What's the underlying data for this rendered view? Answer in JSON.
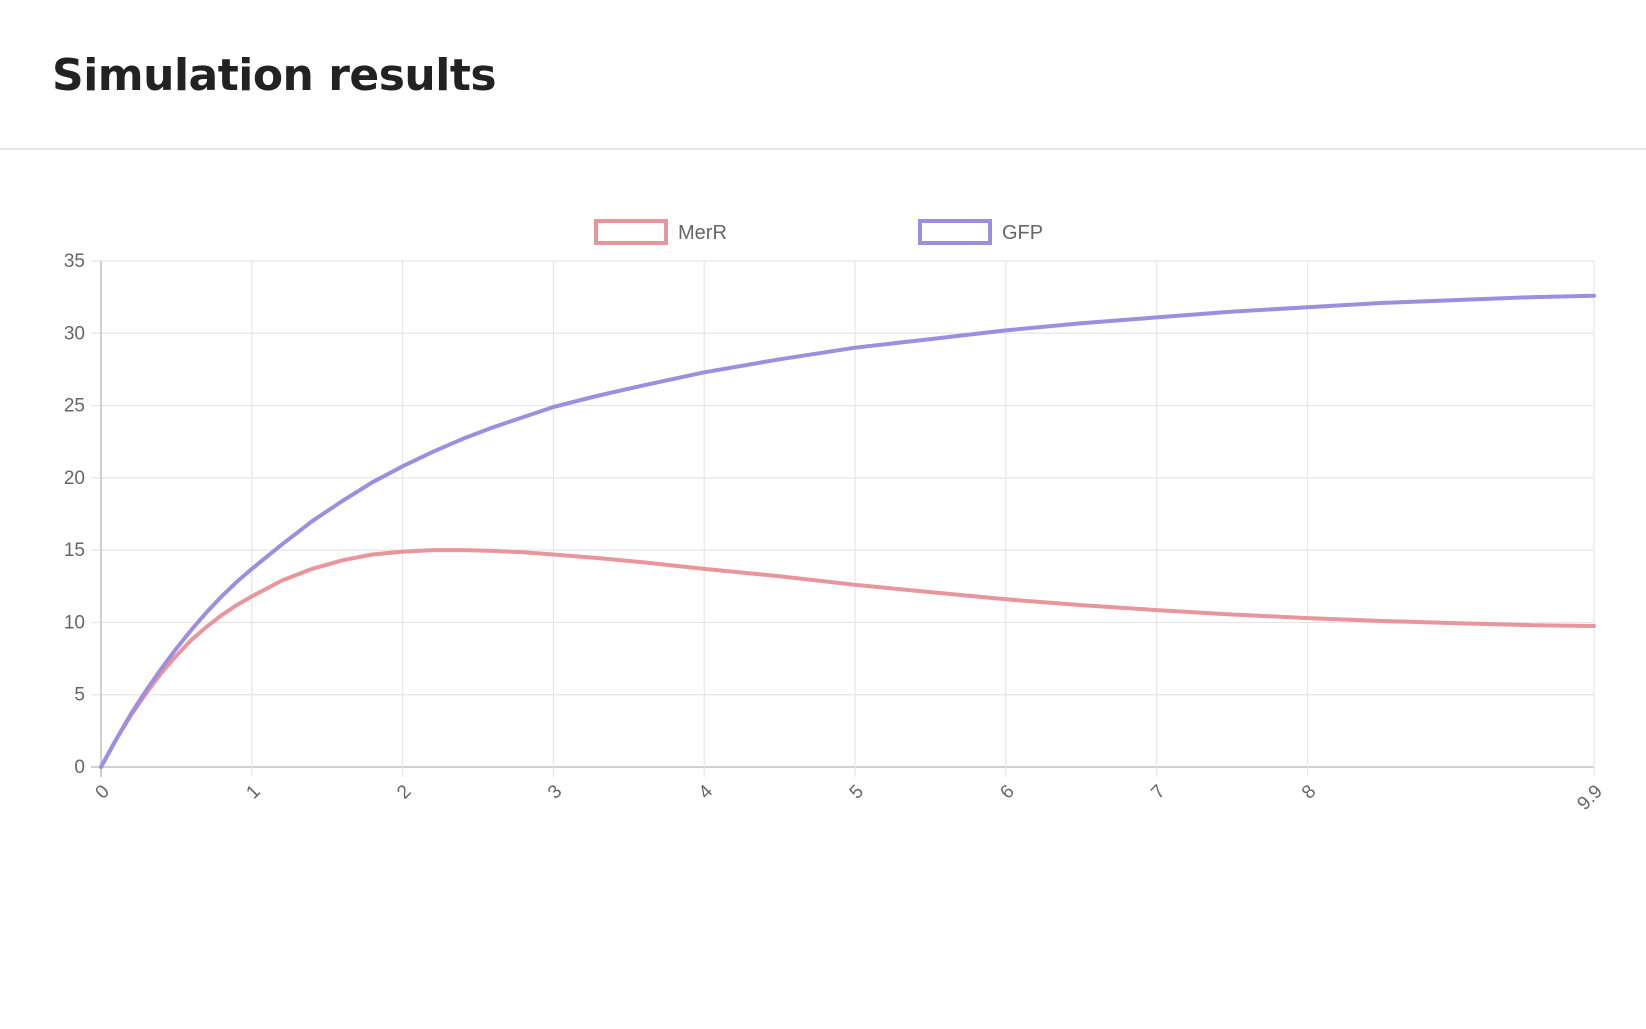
{
  "page": {
    "title": "Simulation results"
  },
  "chart_data": {
    "type": "line",
    "title": "",
    "xlabel": "",
    "ylabel": "",
    "xlim": [
      0,
      9.9
    ],
    "ylim": [
      0,
      35
    ],
    "x_ticks": [
      "0",
      "1",
      "2",
      "3",
      "4",
      "5",
      "6",
      "7",
      "8",
      "9.9"
    ],
    "y_ticks": [
      "0",
      "5",
      "10",
      "15",
      "20",
      "25",
      "30",
      "35"
    ],
    "grid": true,
    "legend_position": "top-center",
    "series": [
      {
        "name": "MerR",
        "color": "#e8959b",
        "x": [
          0,
          0.1,
          0.2,
          0.3,
          0.4,
          0.5,
          0.6,
          0.7,
          0.8,
          0.9,
          1.0,
          1.2,
          1.4,
          1.6,
          1.8,
          2.0,
          2.2,
          2.4,
          2.6,
          2.8,
          3.0,
          3.3,
          3.6,
          4.0,
          4.5,
          5.0,
          5.5,
          6.0,
          6.5,
          7.0,
          7.5,
          8.0,
          8.5,
          9.0,
          9.5,
          9.9
        ],
        "values": [
          0,
          1.9,
          3.6,
          5.1,
          6.5,
          7.7,
          8.8,
          9.7,
          10.5,
          11.2,
          11.8,
          12.9,
          13.7,
          14.3,
          14.7,
          14.9,
          15.0,
          15.0,
          14.95,
          14.85,
          14.7,
          14.45,
          14.15,
          13.7,
          13.2,
          12.6,
          12.1,
          11.6,
          11.2,
          10.85,
          10.55,
          10.3,
          10.1,
          9.95,
          9.8,
          9.75
        ]
      },
      {
        "name": "GFP",
        "color": "#9e8ee0",
        "x": [
          0,
          0.1,
          0.2,
          0.3,
          0.4,
          0.5,
          0.6,
          0.7,
          0.8,
          0.9,
          1.0,
          1.2,
          1.4,
          1.6,
          1.8,
          2.0,
          2.2,
          2.4,
          2.6,
          2.8,
          3.0,
          3.3,
          3.6,
          4.0,
          4.5,
          5.0,
          5.5,
          6.0,
          6.5,
          7.0,
          7.5,
          8.0,
          8.5,
          9.0,
          9.5,
          9.9
        ],
        "values": [
          0,
          1.9,
          3.7,
          5.3,
          6.8,
          8.2,
          9.5,
          10.7,
          11.8,
          12.8,
          13.7,
          15.4,
          17.0,
          18.4,
          19.7,
          20.8,
          21.8,
          22.7,
          23.5,
          24.2,
          24.9,
          25.7,
          26.4,
          27.3,
          28.2,
          29.0,
          29.6,
          30.2,
          30.7,
          31.1,
          31.5,
          31.8,
          32.1,
          32.3,
          32.5,
          32.6
        ]
      }
    ]
  }
}
